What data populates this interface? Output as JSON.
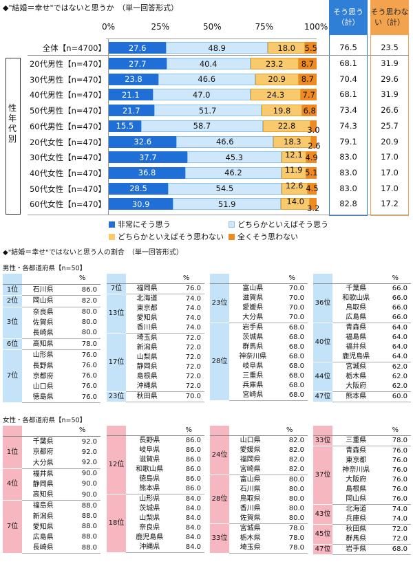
{
  "title": "◆\"結婚＝幸せ\"ではないと思うか　（単一回答形式）",
  "axis_ticks": [
    "0%",
    "25%",
    "50%",
    "75%",
    "100%"
  ],
  "col_headers": {
    "yes": "そう思う（計）",
    "no": "そう思わない（計）"
  },
  "group_label": "性年代別",
  "colors": {
    "s1": "#1f6fd6",
    "s2": "#cfe7fb",
    "s3": "#f9c96e",
    "s4": "#ef8a22",
    "blue_bg": "#c5e3f8",
    "pink_bg": "#f7b7c1"
  },
  "chart_data": {
    "type": "bar",
    "stacked": true,
    "orientation": "horizontal",
    "title": "\"結婚＝幸せ\"ではないと思うか（単一回答形式）",
    "xlim": [
      0,
      100
    ],
    "categories": [
      "全体【n=4700】",
      "20代男性【n=470】",
      "30代男性【n=470】",
      "40代男性【n=470】",
      "50代男性【n=470】",
      "60代男性【n=470】",
      "20代女性【n=470】",
      "30代女性【n=470】",
      "40代女性【n=470】",
      "50代女性【n=470】",
      "60代女性【n=470】"
    ],
    "series": [
      {
        "name": "非常にそう思う",
        "values": [
          27.6,
          27.7,
          23.8,
          21.1,
          21.7,
          15.5,
          32.6,
          37.7,
          36.8,
          28.5,
          30.9
        ]
      },
      {
        "name": "どちらかといえばそう思う",
        "values": [
          48.9,
          40.4,
          46.6,
          47.0,
          51.7,
          58.7,
          46.6,
          45.3,
          46.2,
          54.5,
          51.9
        ]
      },
      {
        "name": "どちらかといえばそう思わない",
        "values": [
          18.0,
          23.2,
          20.9,
          24.3,
          19.8,
          22.8,
          18.3,
          12.1,
          11.9,
          12.6,
          14.0
        ]
      },
      {
        "name": "全くそう思わない",
        "values": [
          5.5,
          8.7,
          8.7,
          7.7,
          6.8,
          3.0,
          2.6,
          4.9,
          5.1,
          4.5,
          3.2
        ]
      }
    ],
    "labels": [
      [
        "27.6",
        "48.9",
        "18.0",
        "5.5"
      ],
      [
        "27.7",
        "40.4",
        "23.2",
        "8.7"
      ],
      [
        "23.8",
        "46.6",
        "20.9",
        "8.7"
      ],
      [
        "21.1",
        "47.0",
        "24.3",
        "7.7"
      ],
      [
        "21.7",
        "51.7",
        "19.8",
        "6.8"
      ],
      [
        "15.5",
        "58.7",
        "22.8",
        "3.0"
      ],
      [
        "32.6",
        "46.6",
        "18.3",
        "2.6"
      ],
      [
        "37.7",
        "45.3",
        "12.1",
        "4.9"
      ],
      [
        "36.8",
        "46.2",
        "11.9",
        "5.1"
      ],
      [
        "28.5",
        "54.5",
        "12.6",
        "4.5"
      ],
      [
        "30.9",
        "51.9",
        "14.0",
        "3.2"
      ]
    ],
    "total_yes": [
      "76.5",
      "68.1",
      "70.4",
      "68.1",
      "73.4",
      "74.3",
      "79.1",
      "83.0",
      "83.0",
      "83.0",
      "82.8"
    ],
    "total_no": [
      "23.5",
      "31.9",
      "29.6",
      "31.9",
      "26.6",
      "25.7",
      "20.9",
      "17.0",
      "17.0",
      "17.0",
      "17.2"
    ]
  },
  "legend": [
    "非常にそう思う",
    "どちらかといえばそう思う",
    "どちらかといえばそう思わない",
    "全くそう思わない"
  ],
  "section2_title": "◆\"結婚＝幸せ\"ではないと思う人の割合　（単一回答形式）",
  "male_title": "男性・各都道府県【n=50】",
  "female_title": "女性・各都道府県【n=50】",
  "pct_header": "%",
  "male_tables": [
    [
      [
        "1位",
        "石川県",
        "86.0"
      ],
      [
        "2位",
        "岡山県",
        "82.0"
      ],
      [
        "3位",
        "奈良県",
        "80.0"
      ],
      [
        "",
        "佐賀県",
        "80.0"
      ],
      [
        "",
        "長崎県",
        "80.0"
      ],
      [
        "6位",
        "高知県",
        "78.0"
      ],
      [
        "7位",
        "山形県",
        "76.0"
      ],
      [
        "",
        "長野県",
        "76.0"
      ],
      [
        "",
        "京都府",
        "76.0"
      ],
      [
        "",
        "山口県",
        "76.0"
      ],
      [
        "",
        "徳島県",
        "76.0"
      ]
    ],
    [
      [
        "7位",
        "福岡県",
        "76.0"
      ],
      [
        "13位",
        "北海道",
        "74.0"
      ],
      [
        "",
        "東京都",
        "74.0"
      ],
      [
        "",
        "愛知県",
        "74.0"
      ],
      [
        "",
        "香川県",
        "74.0"
      ],
      [
        "17位",
        "埼玉県",
        "72.0"
      ],
      [
        "",
        "新潟県",
        "72.0"
      ],
      [
        "",
        "山梨県",
        "72.0"
      ],
      [
        "",
        "静岡県",
        "72.0"
      ],
      [
        "",
        "島根県",
        "72.0"
      ],
      [
        "",
        "沖縄県",
        "72.0"
      ],
      [
        "23位",
        "秋田県",
        "70.0"
      ]
    ],
    [
      [
        "23位",
        "富山県",
        "70.0"
      ],
      [
        "",
        "滋賀県",
        "70.0"
      ],
      [
        "",
        "愛媛県",
        "70.0"
      ],
      [
        "",
        "大分県",
        "70.0"
      ],
      [
        "28位",
        "岩手県",
        "68.0"
      ],
      [
        "",
        "茨城県",
        "68.0"
      ],
      [
        "",
        "群馬県",
        "68.0"
      ],
      [
        "",
        "神奈川県",
        "68.0"
      ],
      [
        "",
        "岐阜県",
        "68.0"
      ],
      [
        "",
        "三重県",
        "68.0"
      ],
      [
        "",
        "兵庫県",
        "68.0"
      ],
      [
        "",
        "宮崎県",
        "68.0"
      ]
    ],
    [
      [
        "36位",
        "千葉県",
        "66.0"
      ],
      [
        "",
        "和歌山県",
        "66.0"
      ],
      [
        "",
        "鳥取県",
        "66.0"
      ],
      [
        "",
        "広島県",
        "66.0"
      ],
      [
        "40位",
        "青森県",
        "64.0"
      ],
      [
        "",
        "福島県",
        "64.0"
      ],
      [
        "",
        "福井県",
        "64.0"
      ],
      [
        "",
        "鹿児島県",
        "64.0"
      ],
      [
        "44位",
        "宮城県",
        "62.0"
      ],
      [
        "",
        "栃木県",
        "62.0"
      ],
      [
        "",
        "大阪府",
        "62.0"
      ],
      [
        "47位",
        "熊本県",
        "60.0"
      ]
    ]
  ],
  "female_tables": [
    [
      [
        "1位",
        "千葉県",
        "92.0"
      ],
      [
        "",
        "京都府",
        "92.0"
      ],
      [
        "",
        "大分県",
        "92.0"
      ],
      [
        "4位",
        "福井県",
        "90.0"
      ],
      [
        "",
        "静岡県",
        "90.0"
      ],
      [
        "",
        "高知県",
        "90.0"
      ],
      [
        "7位",
        "福島県",
        "88.0"
      ],
      [
        "",
        "新潟県",
        "88.0"
      ],
      [
        "",
        "愛知県",
        "88.0"
      ],
      [
        "",
        "広島県",
        "88.0"
      ],
      [
        "",
        "長崎県",
        "88.0"
      ]
    ],
    [
      [
        "12位",
        "長野県",
        "86.0"
      ],
      [
        "",
        "岐阜県",
        "86.0"
      ],
      [
        "",
        "滋賀県",
        "86.0"
      ],
      [
        "",
        "和歌山県",
        "86.0"
      ],
      [
        "",
        "徳島県",
        "86.0"
      ],
      [
        "",
        "熊本県",
        "86.0"
      ],
      [
        "18位",
        "山形県",
        "84.0"
      ],
      [
        "",
        "茨城県",
        "84.0"
      ],
      [
        "",
        "山梨県",
        "84.0"
      ],
      [
        "",
        "奈良県",
        "84.0"
      ],
      [
        "",
        "鹿児島県",
        "84.0"
      ],
      [
        "",
        "沖縄県",
        "84.0"
      ]
    ],
    [
      [
        "24位",
        "山口県",
        "82.0"
      ],
      [
        "",
        "愛媛県",
        "82.0"
      ],
      [
        "",
        "福岡県",
        "82.0"
      ],
      [
        "",
        "宮崎県",
        "82.0"
      ],
      [
        "28位",
        "富山県",
        "80.0"
      ],
      [
        "",
        "石川県",
        "80.0"
      ],
      [
        "",
        "鳥取県",
        "80.0"
      ],
      [
        "",
        "香川県",
        "80.0"
      ],
      [
        "",
        "佐賀県",
        "80.0"
      ],
      [
        "33位",
        "宮城県",
        "78.0"
      ],
      [
        "",
        "栃木県",
        "78.0"
      ],
      [
        "",
        "埼玉県",
        "78.0"
      ]
    ],
    [
      [
        "33位",
        "三重県",
        "78.0"
      ],
      [
        "37位",
        "青森県",
        "76.0"
      ],
      [
        "",
        "東京都",
        "76.0"
      ],
      [
        "",
        "神奈川県",
        "76.0"
      ],
      [
        "",
        "大阪府",
        "76.0"
      ],
      [
        "",
        "島根県",
        "76.0"
      ],
      [
        "",
        "岡山県",
        "76.0"
      ],
      [
        "43位",
        "北海道",
        "74.0"
      ],
      [
        "",
        "兵庫県",
        "74.0"
      ],
      [
        "45位",
        "秋田県",
        "72.0"
      ],
      [
        "",
        "群馬県",
        "72.0"
      ],
      [
        "47位",
        "岩手県",
        "68.0"
      ]
    ]
  ]
}
